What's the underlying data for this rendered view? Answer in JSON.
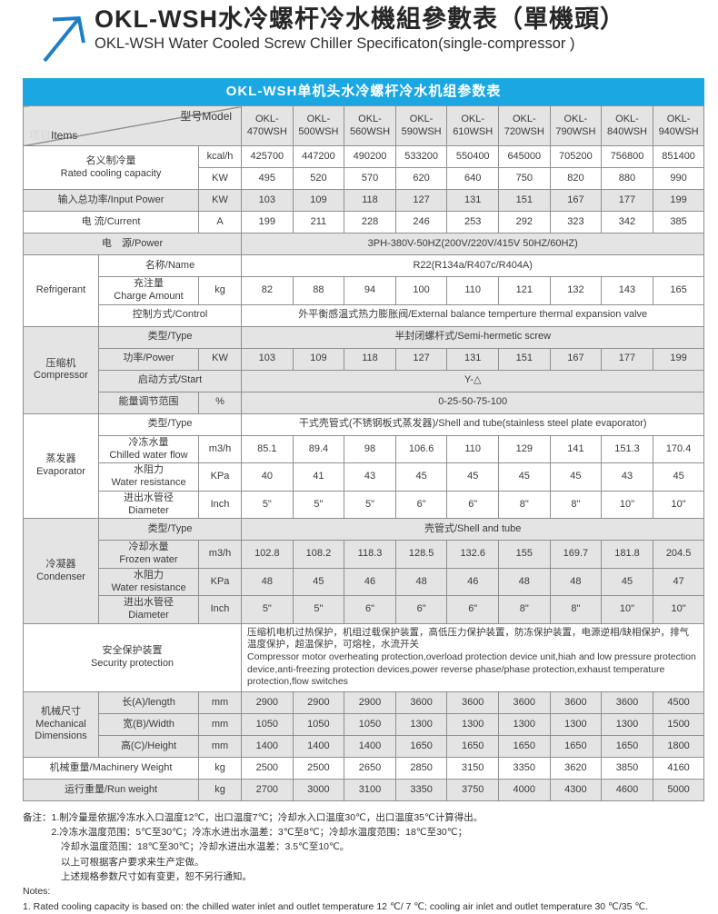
{
  "page": {
    "title_zh": "OKL-WSH水冷螺杆冷水機組參數表（單機頭）",
    "title_en": "OKL-WSH Water Cooled Screw Chiller Specificaton(single-compressor )",
    "banner": "OKL-WSH单机头水冷螺杆冷水机组参数表"
  },
  "colors": {
    "banner_blue": "#1ba7e1",
    "arrow_blue": "#1e7ec6",
    "row_gray": "#e4e4e4",
    "border_gray": "#8f8f8f"
  },
  "icons": {
    "logo": "up-right-arrow-icon"
  },
  "table": {
    "corner": {
      "items_zh": "项目",
      "items_en": "Items",
      "model": "型号Model"
    },
    "models": [
      "OKL-470WSH",
      "OKL-500WSH",
      "OKL-560WSH",
      "OKL-590WSH",
      "OKL-610WSH",
      "OKL-720WSH",
      "OKL-790WSH",
      "OKL-840WSH",
      "OKL-940WSH"
    ],
    "rows": [
      {
        "bg": "w",
        "cells": [
          {
            "t": "名义制冷量\nRated cooling capacity",
            "cs": 2,
            "rs": 2,
            "n": "row-label-rated-cooling"
          },
          {
            "t": "kcal/h",
            "n": "unit-cell"
          },
          {
            "vals": [
              "425700",
              "447200",
              "490200",
              "533200",
              "550400",
              "645000",
              "705200",
              "756800",
              "851400"
            ]
          }
        ]
      },
      {
        "bg": "w",
        "cells": [
          {
            "t": "KW",
            "n": "unit-cell"
          },
          {
            "vals": [
              "495",
              "520",
              "570",
              "620",
              "640",
              "750",
              "820",
              "880",
              "990"
            ]
          }
        ]
      },
      {
        "bg": "g",
        "cells": [
          {
            "t": "输入总功率/Input Power",
            "cs": 2,
            "n": "row-label-input-power"
          },
          {
            "t": "KW",
            "n": "unit-cell"
          },
          {
            "vals": [
              "103",
              "109",
              "118",
              "127",
              "131",
              "151",
              "167",
              "177",
              "199"
            ]
          }
        ]
      },
      {
        "bg": "w",
        "cells": [
          {
            "t": "电 流/Current",
            "cs": 2,
            "n": "row-label-current"
          },
          {
            "t": "A",
            "n": "unit-cell"
          },
          {
            "vals": [
              "199",
              "211",
              "228",
              "246",
              "253",
              "292",
              "323",
              "342",
              "385"
            ]
          }
        ]
      },
      {
        "bg": "g",
        "cells": [
          {
            "t": "电　源/Power",
            "cs": 3,
            "n": "row-label-power-supply"
          },
          {
            "t": "3PH-380V-50HZ(200V/220V/415V  50HZ/60HZ)",
            "cs": 9,
            "n": "span-value"
          }
        ]
      },
      {
        "bg": "w",
        "cells": [
          {
            "t": "Refrigerant",
            "rs": 3,
            "n": "group-label-refrigerant"
          },
          {
            "t": "名称/Name",
            "cs": 2,
            "n": "row-label-name"
          },
          {
            "t": "R22(R134a/R407c/R404A)",
            "cs": 9,
            "n": "span-value"
          }
        ]
      },
      {
        "bg": "w",
        "cells": [
          {
            "t": "充注量\nCharge Amount",
            "n": "row-label-charge-amount"
          },
          {
            "t": "kg",
            "n": "unit-cell"
          },
          {
            "vals": [
              "82",
              "88",
              "94",
              "100",
              "110",
              "121",
              "132",
              "143",
              "165"
            ]
          }
        ]
      },
      {
        "bg": "w",
        "cells": [
          {
            "t": "控制方式/Control",
            "cs": 2,
            "n": "row-label-control"
          },
          {
            "t": "外平衡感温式热力膨胀阀/External balance temperture thermal expansion valve",
            "cs": 9,
            "n": "span-value"
          }
        ]
      },
      {
        "bg": "g",
        "cells": [
          {
            "t": "压缩机\nCompressor",
            "rs": 4,
            "n": "group-label-compressor"
          },
          {
            "t": "类型/Type",
            "cs": 2,
            "n": "row-label-type"
          },
          {
            "t": "半封闭螺杆式/Semi-hermetic screw",
            "cs": 9,
            "n": "span-value"
          }
        ]
      },
      {
        "bg": "g",
        "cells": [
          {
            "t": "功率/Power",
            "n": "row-label-comp-power"
          },
          {
            "t": "KW",
            "n": "unit-cell"
          },
          {
            "vals": [
              "103",
              "109",
              "118",
              "127",
              "131",
              "151",
              "167",
              "177",
              "199"
            ]
          }
        ]
      },
      {
        "bg": "g",
        "cells": [
          {
            "t": "启动方式/Start",
            "cs": 2,
            "n": "row-label-start"
          },
          {
            "t": "Y-△",
            "cs": 9,
            "n": "span-value"
          }
        ]
      },
      {
        "bg": "g",
        "cells": [
          {
            "t": "能量调节范围",
            "n": "row-label-energy-range"
          },
          {
            "t": "%",
            "n": "unit-cell"
          },
          {
            "t": "0-25-50-75-100",
            "cs": 9,
            "n": "span-value"
          }
        ]
      },
      {
        "bg": "w",
        "cells": [
          {
            "t": "蒸发器\nEvaporator",
            "rs": 4,
            "n": "group-label-evaporator"
          },
          {
            "t": "类型/Type",
            "cs": 2,
            "n": "row-label-type"
          },
          {
            "t": "干式壳管式(不锈钢板式蒸发器)/Shell and tube(stainless steel plate evaporator)",
            "cs": 9,
            "n": "span-value"
          }
        ]
      },
      {
        "bg": "w",
        "cells": [
          {
            "t": "冷冻水量\nChilled water flow",
            "n": "row-label-chilled-flow"
          },
          {
            "t": "m3/h",
            "n": "unit-cell"
          },
          {
            "vals": [
              "85.1",
              "89.4",
              "98",
              "106.6",
              "110",
              "129",
              "141",
              "151.3",
              "170.4"
            ]
          }
        ]
      },
      {
        "bg": "w",
        "cells": [
          {
            "t": "水阻力\nWater resistance",
            "n": "row-label-water-resistance"
          },
          {
            "t": "KPa",
            "n": "unit-cell"
          },
          {
            "vals": [
              "40",
              "41",
              "43",
              "45",
              "45",
              "45",
              "45",
              "43",
              "45"
            ]
          }
        ]
      },
      {
        "bg": "w",
        "cells": [
          {
            "t": "进出水管径\nDiameter",
            "n": "row-label-diameter"
          },
          {
            "t": "Inch",
            "n": "unit-cell"
          },
          {
            "vals": [
              "5\"",
              "5\"",
              "5\"",
              "6\"",
              "6\"",
              "8\"",
              "8\"",
              "10\"",
              "10\""
            ]
          }
        ]
      },
      {
        "bg": "g",
        "cells": [
          {
            "t": "冷凝器\nCondenser",
            "rs": 4,
            "n": "group-label-condenser"
          },
          {
            "t": "类型/Type",
            "cs": 2,
            "n": "row-label-type"
          },
          {
            "t": "壳管式/Shell and tube",
            "cs": 9,
            "n": "span-value"
          }
        ]
      },
      {
        "bg": "g",
        "cells": [
          {
            "t": "冷却水量\nFrozen water",
            "n": "row-label-frozen-water"
          },
          {
            "t": "m3/h",
            "n": "unit-cell"
          },
          {
            "vals": [
              "102.8",
              "108.2",
              "118.3",
              "128.5",
              "132.6",
              "155",
              "169.7",
              "181.8",
              "204.5"
            ]
          }
        ]
      },
      {
        "bg": "g",
        "cells": [
          {
            "t": "水阻力\nWater resistance",
            "n": "row-label-water-resistance"
          },
          {
            "t": "KPa",
            "n": "unit-cell"
          },
          {
            "vals": [
              "48",
              "45",
              "46",
              "48",
              "46",
              "48",
              "48",
              "45",
              "47"
            ]
          }
        ]
      },
      {
        "bg": "g",
        "cells": [
          {
            "t": "进出水管径\nDiameter",
            "n": "row-label-diameter"
          },
          {
            "t": "Inch",
            "n": "unit-cell"
          },
          {
            "vals": [
              "5\"",
              "5\"",
              "6\"",
              "6\"",
              "6\"",
              "8\"",
              "8\"",
              "10\"",
              "10\""
            ]
          }
        ]
      },
      {
        "bg": "w",
        "cells": [
          {
            "t": "安全保护装置\nSecurity protection",
            "cs": 3,
            "n": "row-label-security"
          },
          {
            "t": "压缩机电机过热保护，机组过载保护装置，高低压力保护装置，防冻保护装置，电源逆相/缺相保护，排气温度保护，超温保护，可熔栓，水流开关\nCompressor motor overheating protection,overload protection device unit,hiah and low pressure protection device,anti-freezing protection devices,power reverse phase/phase protection,exhaust temperature protection,flow switches",
            "cs": 9,
            "left": true,
            "n": "security-protection-text"
          }
        ]
      },
      {
        "bg": "g",
        "cells": [
          {
            "t": "机械尺寸\nMechanical\nDimensions",
            "rs": 3,
            "n": "group-label-dimensions"
          },
          {
            "t": "长(A)/length",
            "n": "row-label-length"
          },
          {
            "t": "mm",
            "n": "unit-cell"
          },
          {
            "vals": [
              "2900",
              "2900",
              "2900",
              "3600",
              "3600",
              "3600",
              "3600",
              "3600",
              "4500"
            ]
          }
        ]
      },
      {
        "bg": "g",
        "cells": [
          {
            "t": "宽(B)/Width",
            "n": "row-label-width"
          },
          {
            "t": "mm",
            "n": "unit-cell"
          },
          {
            "vals": [
              "1050",
              "1050",
              "1050",
              "1300",
              "1300",
              "1300",
              "1300",
              "1300",
              "1500"
            ]
          }
        ]
      },
      {
        "bg": "g",
        "cells": [
          {
            "t": "高(C)/Height",
            "n": "row-label-height"
          },
          {
            "t": "mm",
            "n": "unit-cell"
          },
          {
            "vals": [
              "1400",
              "1400",
              "1400",
              "1650",
              "1650",
              "1650",
              "1650",
              "1650",
              "1800"
            ]
          }
        ]
      },
      {
        "bg": "w",
        "cells": [
          {
            "t": "机械重量/Machinery Weight",
            "cs": 2,
            "n": "row-label-machinery-weight"
          },
          {
            "t": "kg",
            "n": "unit-cell"
          },
          {
            "vals": [
              "2500",
              "2500",
              "2650",
              "2850",
              "3150",
              "3350",
              "3620",
              "3850",
              "4160"
            ]
          }
        ]
      },
      {
        "bg": "g",
        "cells": [
          {
            "t": "运行重量/Run weight",
            "cs": 2,
            "n": "row-label-run-weight"
          },
          {
            "t": "kg",
            "n": "unit-cell"
          },
          {
            "vals": [
              "2700",
              "3000",
              "3100",
              "3350",
              "3750",
              "4000",
              "4300",
              "4600",
              "5000"
            ]
          }
        ]
      }
    ]
  },
  "notes": {
    "lines": [
      "备注：1.制冷量是依据冷冻水入口温度12℃，出口温度7℃；冷却水入口温度30℃，出口温度35℃计算得出。",
      "　　　2.冷冻水温度范围：5℃至30℃；冷冻水进出水温差：3℃至8℃；冷却水温度范围：18℃至30℃；",
      "　　　　冷却水温度范围：18℃至30℃；冷却水进出水温差：3.5℃至10℃。",
      "　　　　以上可根据客户要求来生产定做。",
      "　　　　上述规格参数尺寸如有变更，恕不另行通知。",
      "Notes:",
      "1. Rated cooling capacity is based on: the chilled water inlet and outlet temperature 12 ℃/ 7 ℃; cooling air inlet and outlet temperature 30 ℃/35 ℃."
    ]
  }
}
